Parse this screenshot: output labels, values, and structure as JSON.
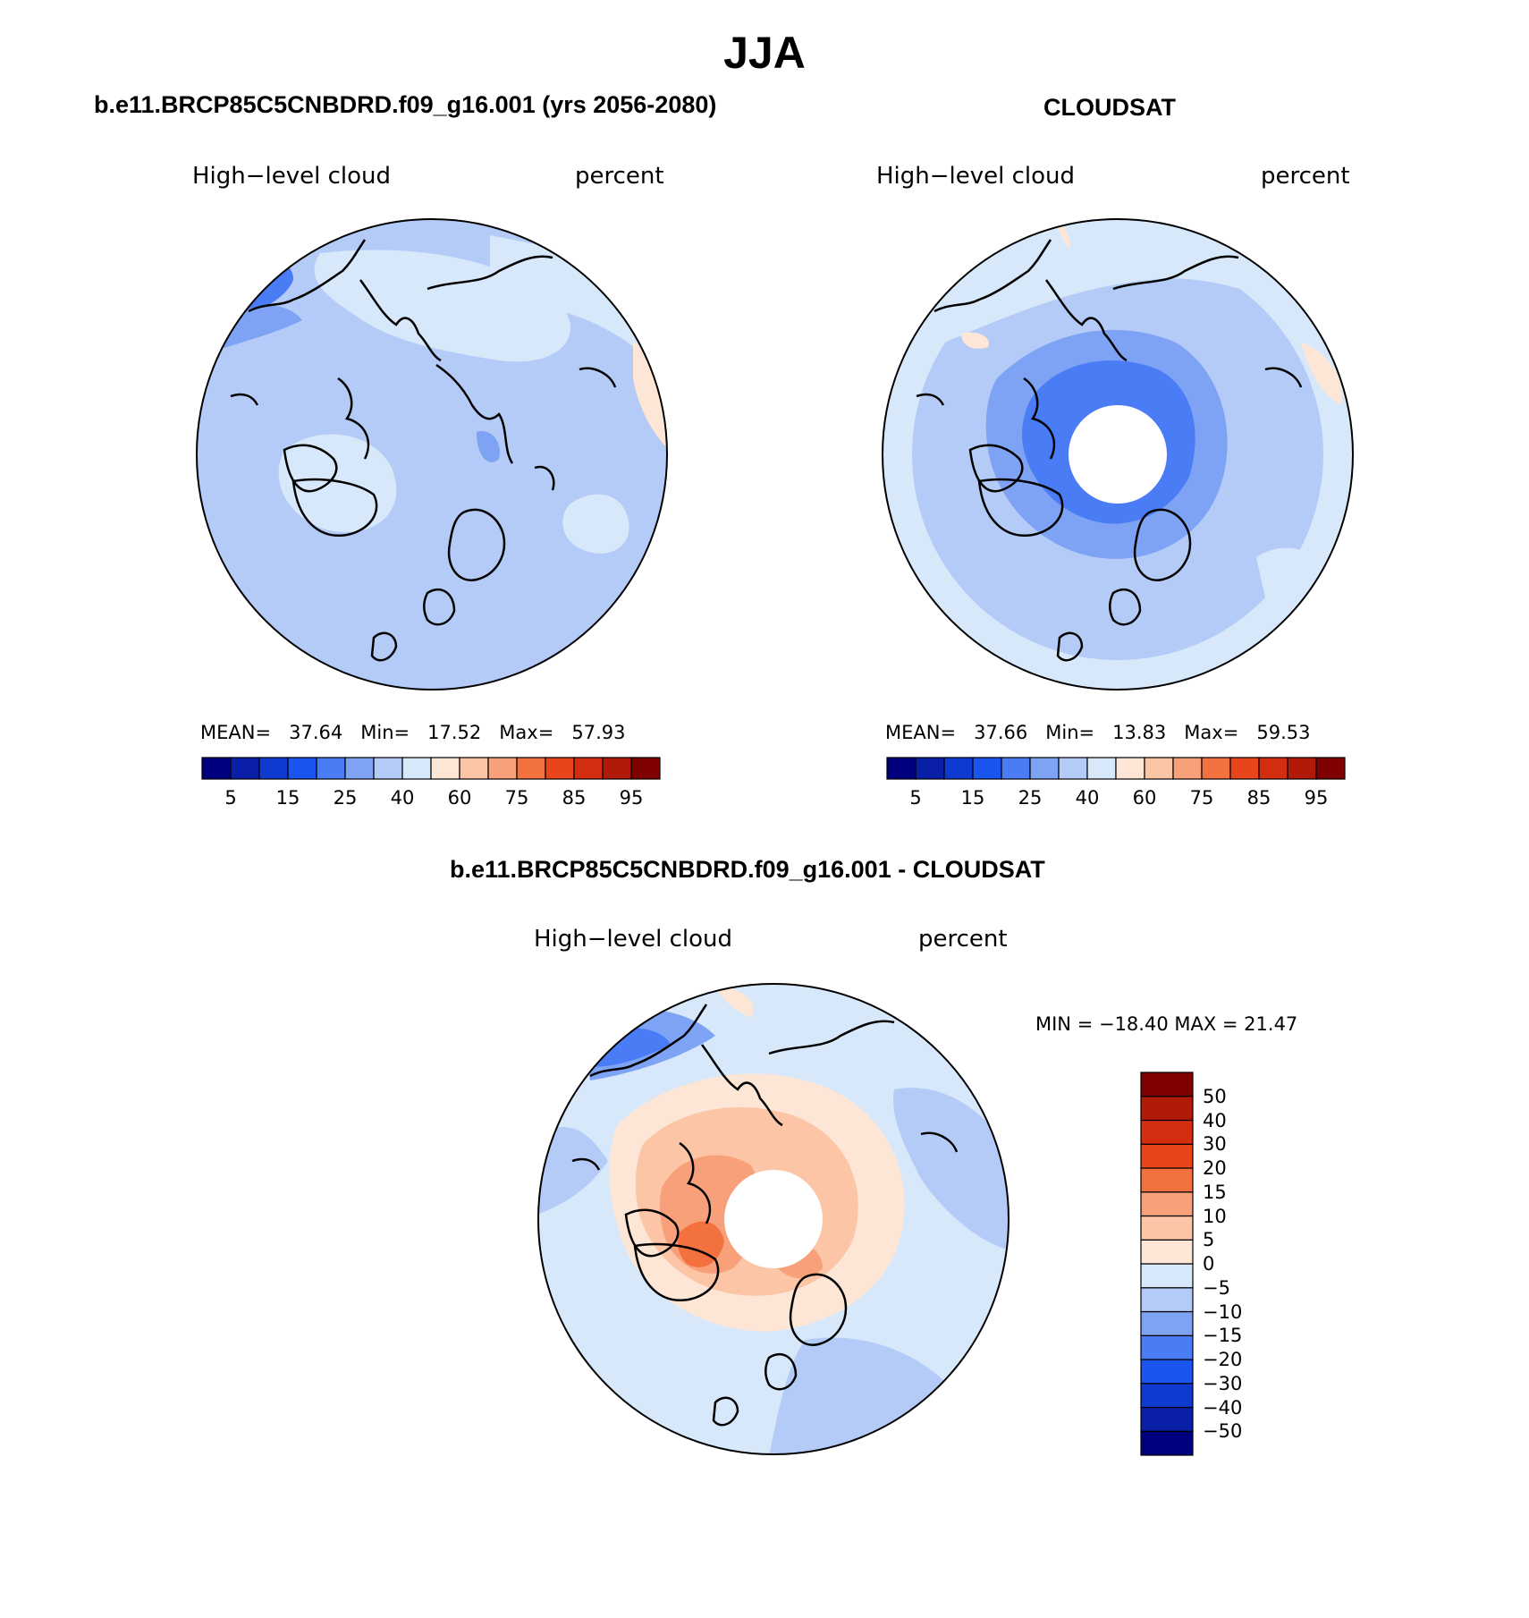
{
  "title": "JJA",
  "panels": [
    {
      "id": "model",
      "heading": "b.e11.BRCP85C5CNBDRD.f09_g16.001 (yrs 2056-2080)",
      "variable": "High−level cloud",
      "units": "percent",
      "stats": {
        "mean_label": "MEAN=",
        "mean": "37.64",
        "min_label": "Min=",
        "min": "17.52",
        "max_label": "Max=",
        "max": "57.93"
      },
      "has_polar_hole": false
    },
    {
      "id": "obs",
      "heading": "CLOUDSAT",
      "variable": "High−level cloud",
      "units": "percent",
      "stats": {
        "mean_label": "MEAN=",
        "mean": "37.66",
        "min_label": "Min=",
        "min": "13.83",
        "max_label": "Max=",
        "max": "59.53"
      },
      "has_polar_hole": true
    },
    {
      "id": "diff",
      "heading": "b.e11.BRCP85C5CNBDRD.f09_g16.001 - CLOUDSAT",
      "variable": "High−level cloud",
      "units": "percent",
      "minmax": "MIN = −18.40 MAX =  21.47",
      "has_polar_hole": true
    }
  ],
  "colorbar_abs": {
    "colors": [
      "#00007f",
      "#0a1fa8",
      "#0f3ad0",
      "#1a55f0",
      "#4a7cf5",
      "#7ea3f4",
      "#b4cbf7",
      "#d8e8fb",
      "#fde6d6",
      "#fbc5a6",
      "#f8a07a",
      "#f3703f",
      "#e8461a",
      "#d42d10",
      "#b11a08",
      "#7f0000"
    ],
    "tick_labels": [
      "5",
      "15",
      "25",
      "40",
      "60",
      "75",
      "85",
      "95"
    ]
  },
  "colorbar_diff": {
    "colors": [
      "#00007f",
      "#0a1fa8",
      "#0f3ad0",
      "#1a55f0",
      "#4a7cf5",
      "#7ea3f4",
      "#b4cbf7",
      "#d8e8fb",
      "#fde6d6",
      "#fbc5a6",
      "#f8a07a",
      "#f3703f",
      "#e8461a",
      "#d42d10",
      "#b11a08",
      "#7f0000"
    ],
    "tick_labels": [
      "50",
      "40",
      "30",
      "20",
      "15",
      "10",
      "5",
      "0",
      "−5",
      "−10",
      "−15",
      "−20",
      "−30",
      "−40",
      "−50"
    ]
  },
  "fill_colors": {
    "model_base": "#b4cbf7",
    "model_light": "#d8e8fb",
    "model_mid": "#7ea3f4",
    "model_dark": "#4a7cf5",
    "model_warm": "#fde6d6",
    "obs_base": "#b4cbf7",
    "obs_light": "#d8e8fb",
    "obs_mid": "#7ea3f4",
    "obs_dark": "#4a7cf5",
    "obs_warm": "#fde6d6",
    "diff_base": "#d8e8fb",
    "diff_warm1": "#fde6d6",
    "diff_warm2": "#fbc5a6",
    "diff_warm3": "#f8a07a",
    "diff_warm4": "#f3703f",
    "diff_cool1": "#b4cbf7",
    "diff_cool2": "#7ea3f4",
    "diff_cool3": "#4a7cf5"
  }
}
